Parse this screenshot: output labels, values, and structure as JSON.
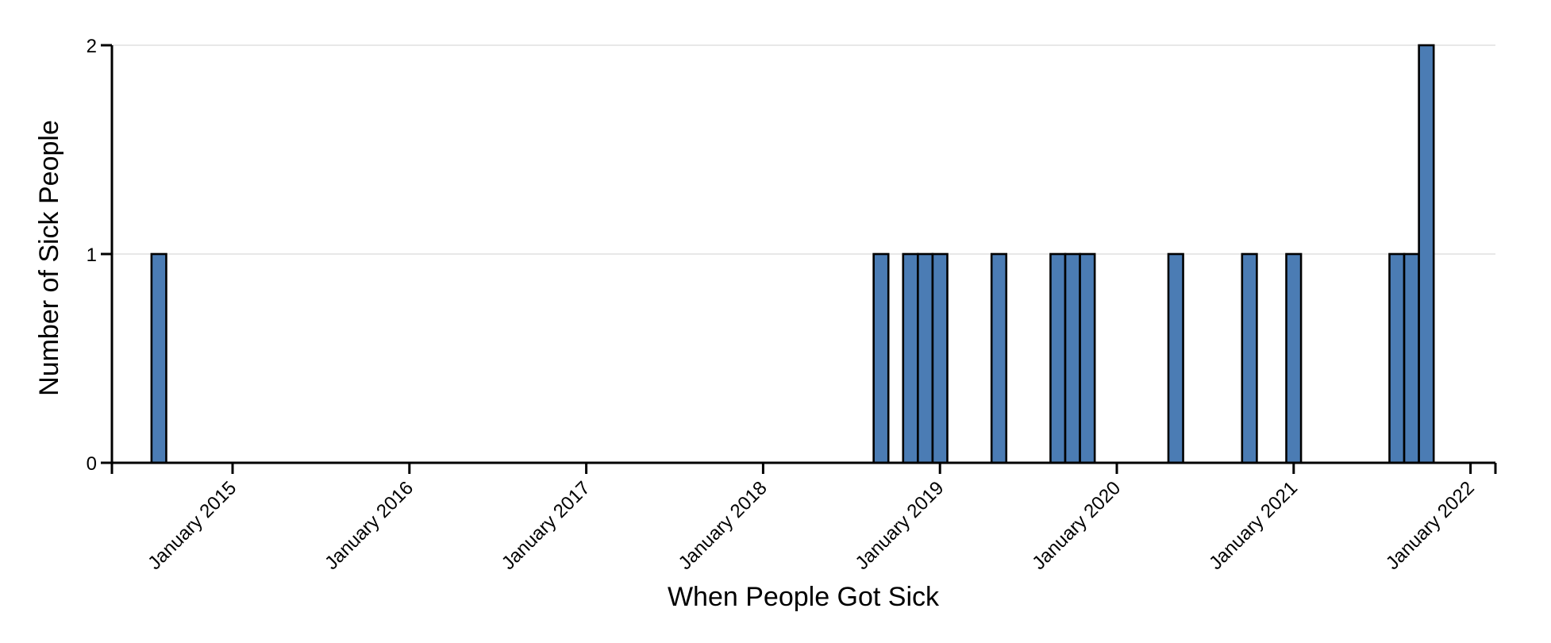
{
  "chart_data": {
    "type": "bar",
    "variant": "epidemic_curve_monthly_histogram",
    "title": "",
    "xlabel": "When People Got Sick",
    "ylabel": "Number of Sick People",
    "x_tick_labels": [
      "January 2015",
      "January 2016",
      "January 2017",
      "January 2018",
      "January 2019",
      "January 2020",
      "January 2021",
      "January 2022"
    ],
    "y_ticks": [
      "0",
      "1",
      "2"
    ],
    "ylim": [
      0,
      2
    ],
    "bin_unit": "month",
    "grid": "horizontal",
    "legend": "none",
    "total_cases": 16,
    "points": [
      {
        "month": "August 2014",
        "count": 1
      },
      {
        "month": "September 2018",
        "count": 1
      },
      {
        "month": "November 2018",
        "count": 1
      },
      {
        "month": "December 2018",
        "count": 1
      },
      {
        "month": "January 2019",
        "count": 1
      },
      {
        "month": "May 2019",
        "count": 1
      },
      {
        "month": "September 2019",
        "count": 1
      },
      {
        "month": "October 2019",
        "count": 1
      },
      {
        "month": "November 2019",
        "count": 1
      },
      {
        "month": "May 2020",
        "count": 1
      },
      {
        "month": "October 2020",
        "count": 1
      },
      {
        "month": "January 2021",
        "count": 1
      },
      {
        "month": "August 2021",
        "count": 1
      },
      {
        "month": "September 2021",
        "count": 1
      },
      {
        "month": "October 2021",
        "count": 2
      }
    ],
    "colors": {
      "bar_fill": "#4b7cb4",
      "bar_stroke": "#000000",
      "gridline": "#e8e8e8",
      "axis": "#000000",
      "text": "#000000",
      "background": "#ffffff"
    }
  }
}
